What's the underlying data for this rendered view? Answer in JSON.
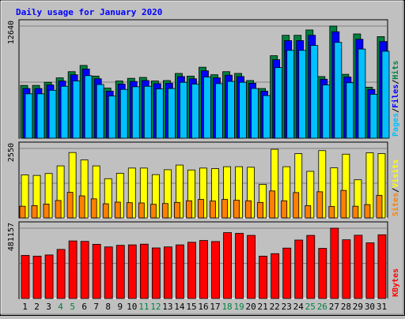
{
  "title": "Daily usage for January 2020",
  "colors": {
    "background": "#c0c0c0",
    "panel": "#c0c0c0",
    "title": "#0000ff",
    "hits": "#008040",
    "files": "#0000ff",
    "pages": "#00c0ff",
    "visits": "#ffff00",
    "sites": "#ff8000",
    "kbytes": "#ff0000",
    "weekend_label": "#008040",
    "weekday_label": "#000000"
  },
  "chart_data": [
    {
      "type": "bar",
      "panel": "hits-files-pages",
      "max_label": "12640",
      "ylim": [
        0,
        12640
      ],
      "legend": [
        {
          "label": "Pages",
          "color": "#00c0ff"
        },
        {
          "label": "Files",
          "color": "#0000ff"
        },
        {
          "label": "Hits",
          "color": "#008040"
        }
      ],
      "separator": "/",
      "categories": [
        "1",
        "2",
        "3",
        "4",
        "5",
        "6",
        "7",
        "8",
        "9",
        "10",
        "11",
        "12",
        "13",
        "14",
        "15",
        "16",
        "17",
        "18",
        "19",
        "20",
        "21",
        "22",
        "23",
        "24",
        "25",
        "26",
        "27",
        "28",
        "29",
        "30",
        "31"
      ],
      "series": [
        {
          "name": "Hits",
          "values": [
            5950,
            5950,
            6300,
            6800,
            7500,
            8200,
            7000,
            5650,
            6450,
            6750,
            6850,
            6450,
            6500,
            7300,
            7000,
            8000,
            7150,
            7500,
            7300,
            6500,
            5600,
            9300,
            11600,
            11600,
            12200,
            6950,
            12640,
            7200,
            11750,
            5750,
            11450
          ]
        },
        {
          "name": "Files",
          "values": [
            5600,
            5600,
            6000,
            6450,
            7150,
            7800,
            6700,
            5300,
            6100,
            6400,
            6500,
            6150,
            6200,
            6950,
            6700,
            7600,
            6800,
            7100,
            6950,
            6200,
            5300,
            8850,
            11000,
            11000,
            11600,
            6650,
            12000,
            6900,
            11150,
            5500,
            10900
          ]
        },
        {
          "name": "Pages",
          "values": [
            5000,
            5000,
            5400,
            5850,
            6450,
            7050,
            6050,
            4750,
            5500,
            5800,
            5850,
            5550,
            5600,
            6300,
            6100,
            6900,
            6150,
            6400,
            6300,
            5600,
            4800,
            7950,
            9900,
            9900,
            10450,
            6000,
            10800,
            6250,
            10050,
            4950,
            9800
          ]
        }
      ]
    },
    {
      "type": "bar",
      "panel": "visits-sites",
      "max_label": "2550",
      "ylim": [
        0,
        2550
      ],
      "legend": [
        {
          "label": "Sites",
          "color": "#ff8000"
        },
        {
          "label": "Visits",
          "color": "#ffff00"
        }
      ],
      "separator": "/",
      "categories": [
        "1",
        "2",
        "3",
        "4",
        "5",
        "6",
        "7",
        "8",
        "9",
        "10",
        "11",
        "12",
        "13",
        "14",
        "15",
        "16",
        "17",
        "18",
        "19",
        "20",
        "21",
        "22",
        "23",
        "24",
        "25",
        "26",
        "27",
        "28",
        "29",
        "30",
        "31"
      ],
      "series": [
        {
          "name": "Visits",
          "values": [
            1580,
            1560,
            1630,
            1910,
            2400,
            2130,
            1910,
            1440,
            1640,
            1830,
            1830,
            1590,
            1770,
            1940,
            1760,
            1830,
            1810,
            1880,
            1880,
            1860,
            1230,
            2520,
            1880,
            2360,
            1710,
            2470,
            1840,
            2340,
            1400,
            2390,
            2360
          ]
        },
        {
          "name": "Sites",
          "values": [
            430,
            450,
            510,
            640,
            940,
            810,
            700,
            520,
            580,
            560,
            550,
            500,
            530,
            570,
            630,
            680,
            620,
            680,
            650,
            630,
            570,
            990,
            630,
            930,
            450,
            960,
            420,
            1010,
            430,
            490,
            830
          ]
        }
      ]
    },
    {
      "type": "bar",
      "panel": "kbytes",
      "max_label": "481157",
      "ylim": [
        0,
        481157
      ],
      "legend": [
        {
          "label": "KBytes",
          "color": "#ff0000"
        }
      ],
      "categories": [
        "1",
        "2",
        "3",
        "4",
        "5",
        "6",
        "7",
        "8",
        "9",
        "10",
        "11",
        "12",
        "13",
        "14",
        "15",
        "16",
        "17",
        "18",
        "19",
        "20",
        "21",
        "22",
        "23",
        "24",
        "25",
        "26",
        "27",
        "28",
        "29",
        "30",
        "31"
      ],
      "series": [
        {
          "name": "KBytes",
          "values": [
            295000,
            290000,
            298000,
            336000,
            394000,
            391000,
            371000,
            353000,
            364000,
            367000,
            372000,
            346000,
            353000,
            367000,
            385000,
            397000,
            390000,
            451000,
            446000,
            432000,
            290000,
            307000,
            345000,
            400000,
            432000,
            343000,
            481157,
            402000,
            433000,
            381000,
            436000
          ]
        }
      ]
    }
  ],
  "weekend_days": [
    4,
    5,
    11,
    12,
    18,
    19,
    25,
    26
  ]
}
